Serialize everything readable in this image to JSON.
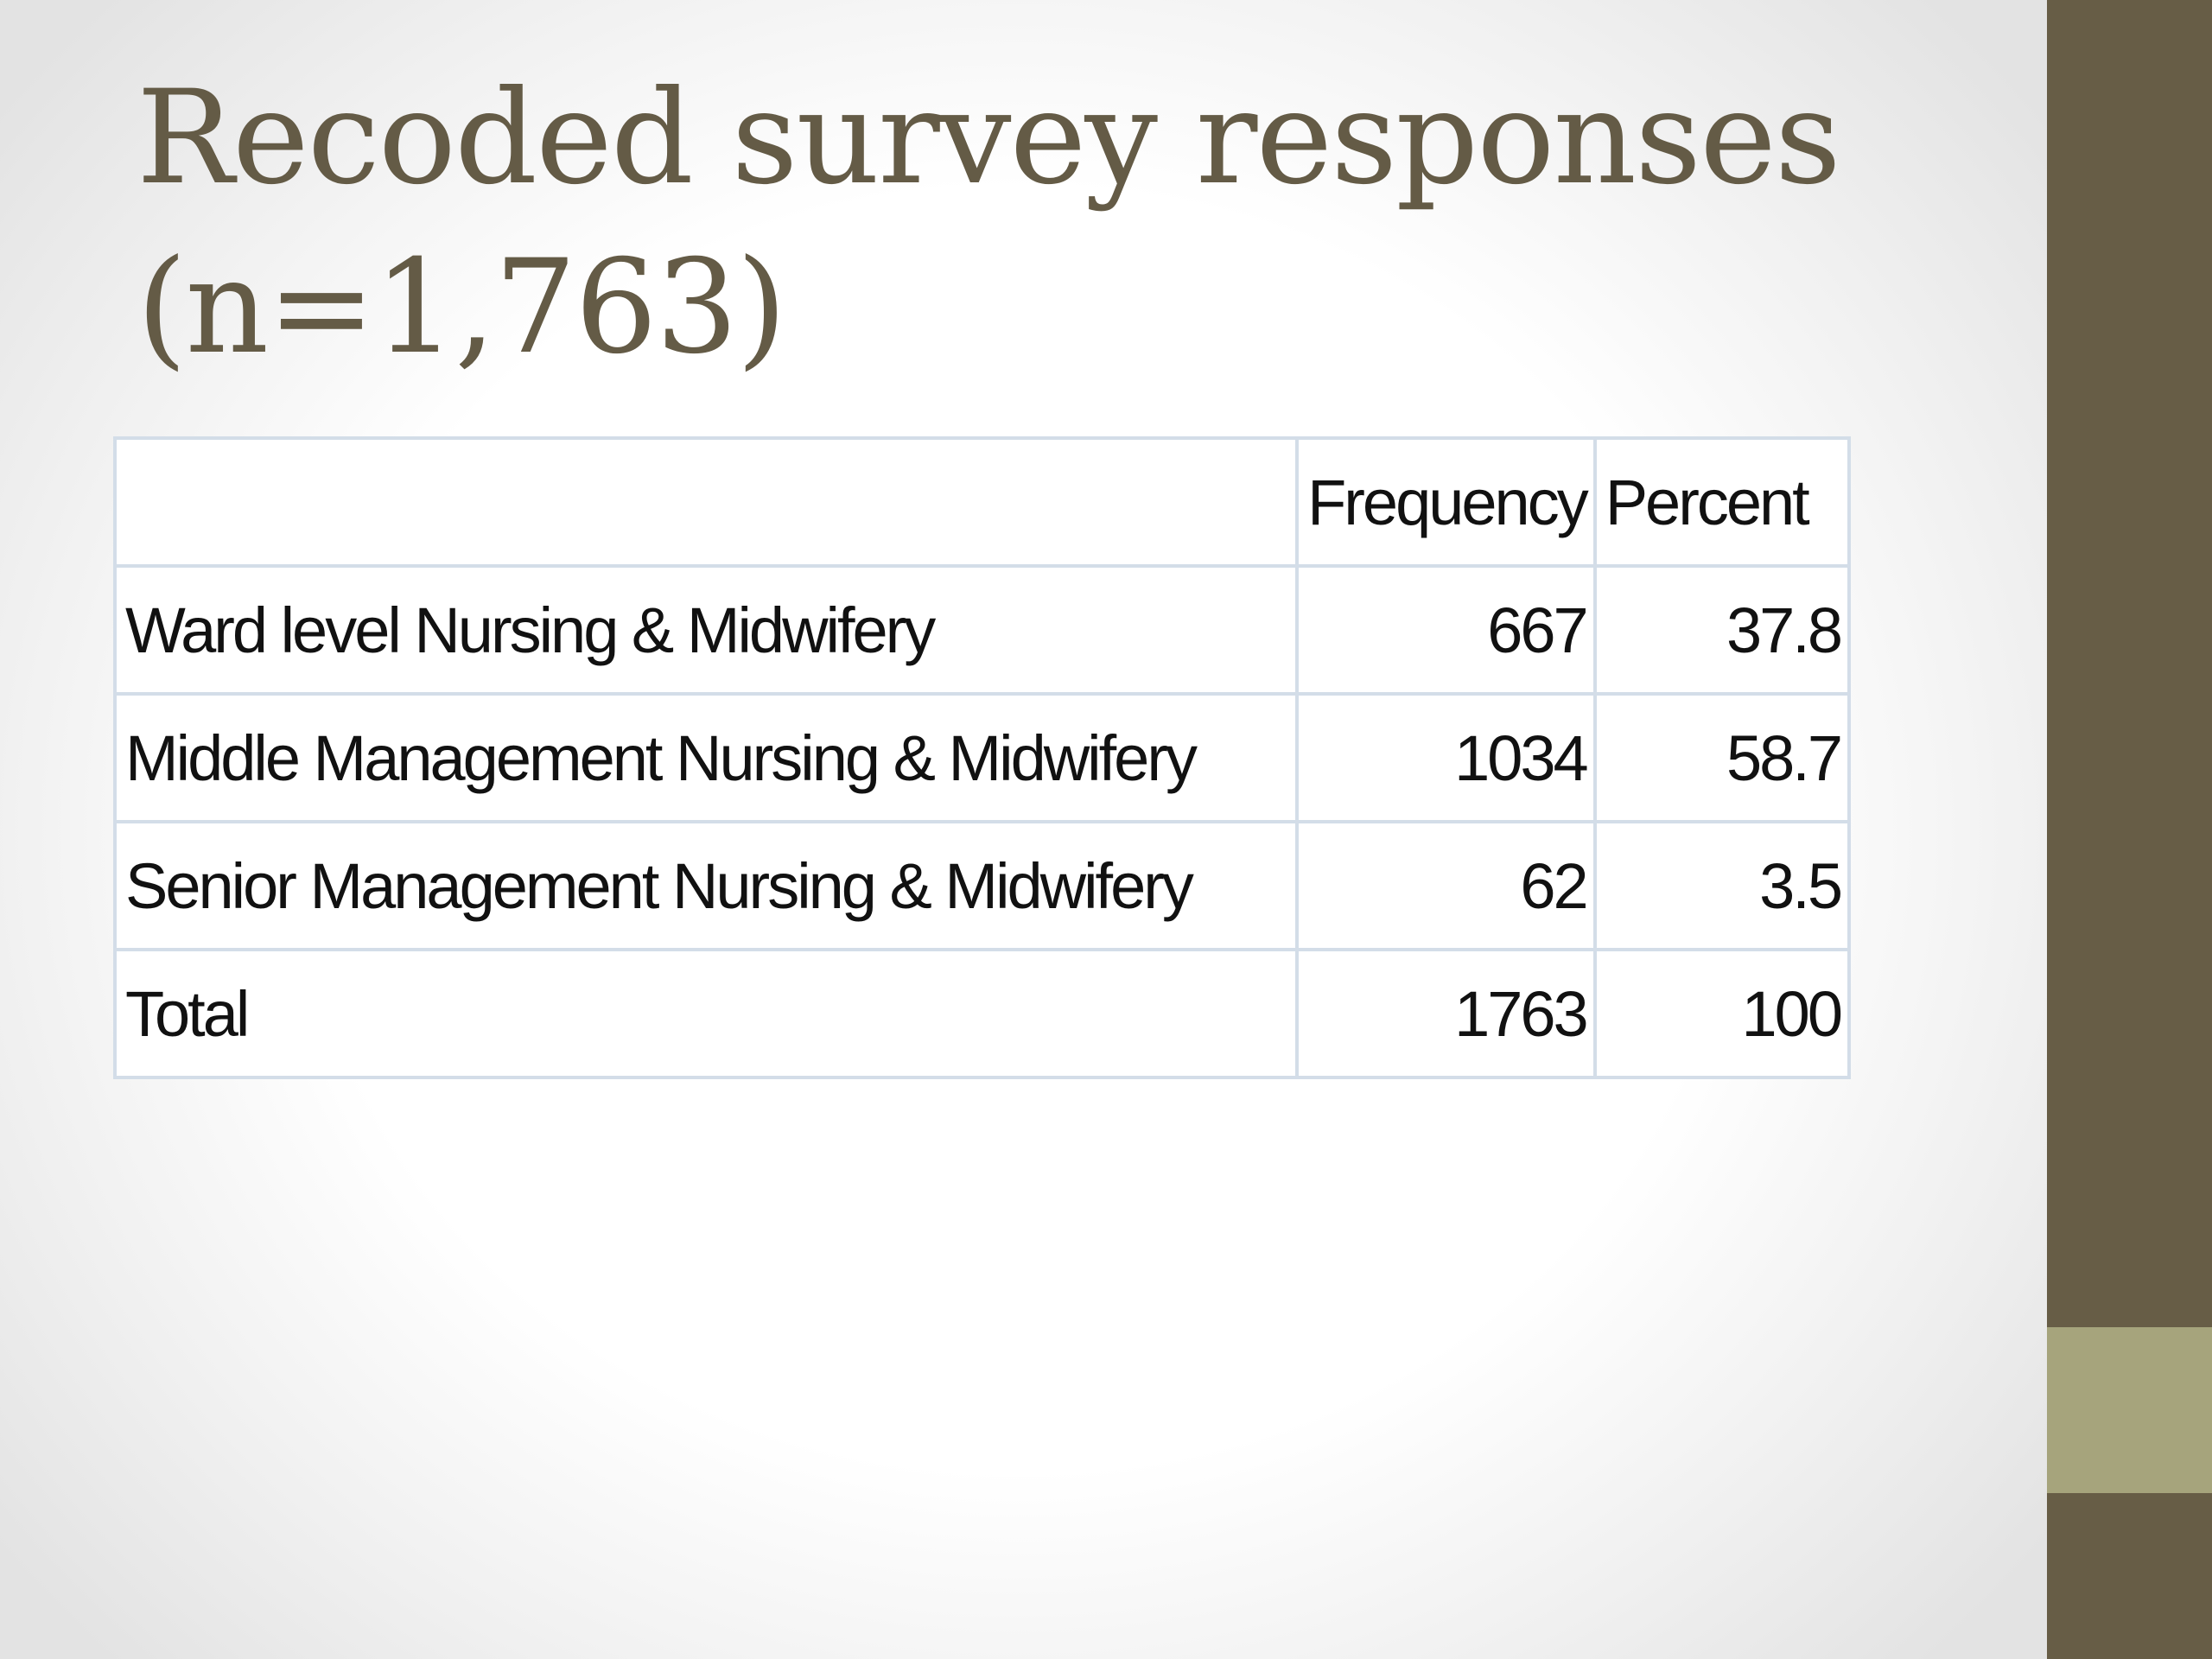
{
  "slide": {
    "title_line1": "Recoded survey responses",
    "title_line2": "(n=1,763)"
  },
  "theme": {
    "title_color": "#645b46",
    "sidebar_color": "#675d46",
    "accent_color": "#a6a47c"
  },
  "table": {
    "headers": [
      "",
      "Frequency",
      "Percent"
    ],
    "rows": [
      {
        "label": "Ward level  Nursing & Midwifery",
        "frequency": "667",
        "percent": "37.8"
      },
      {
        "label": "Middle Management Nursing & Midwifery",
        "frequency": "1034",
        "percent": "58.7"
      },
      {
        "label": "Senior Management Nursing & Midwifery",
        "frequency": "62",
        "percent": "3.5"
      },
      {
        "label": "Total",
        "frequency": "1763",
        "percent": "100"
      }
    ]
  }
}
